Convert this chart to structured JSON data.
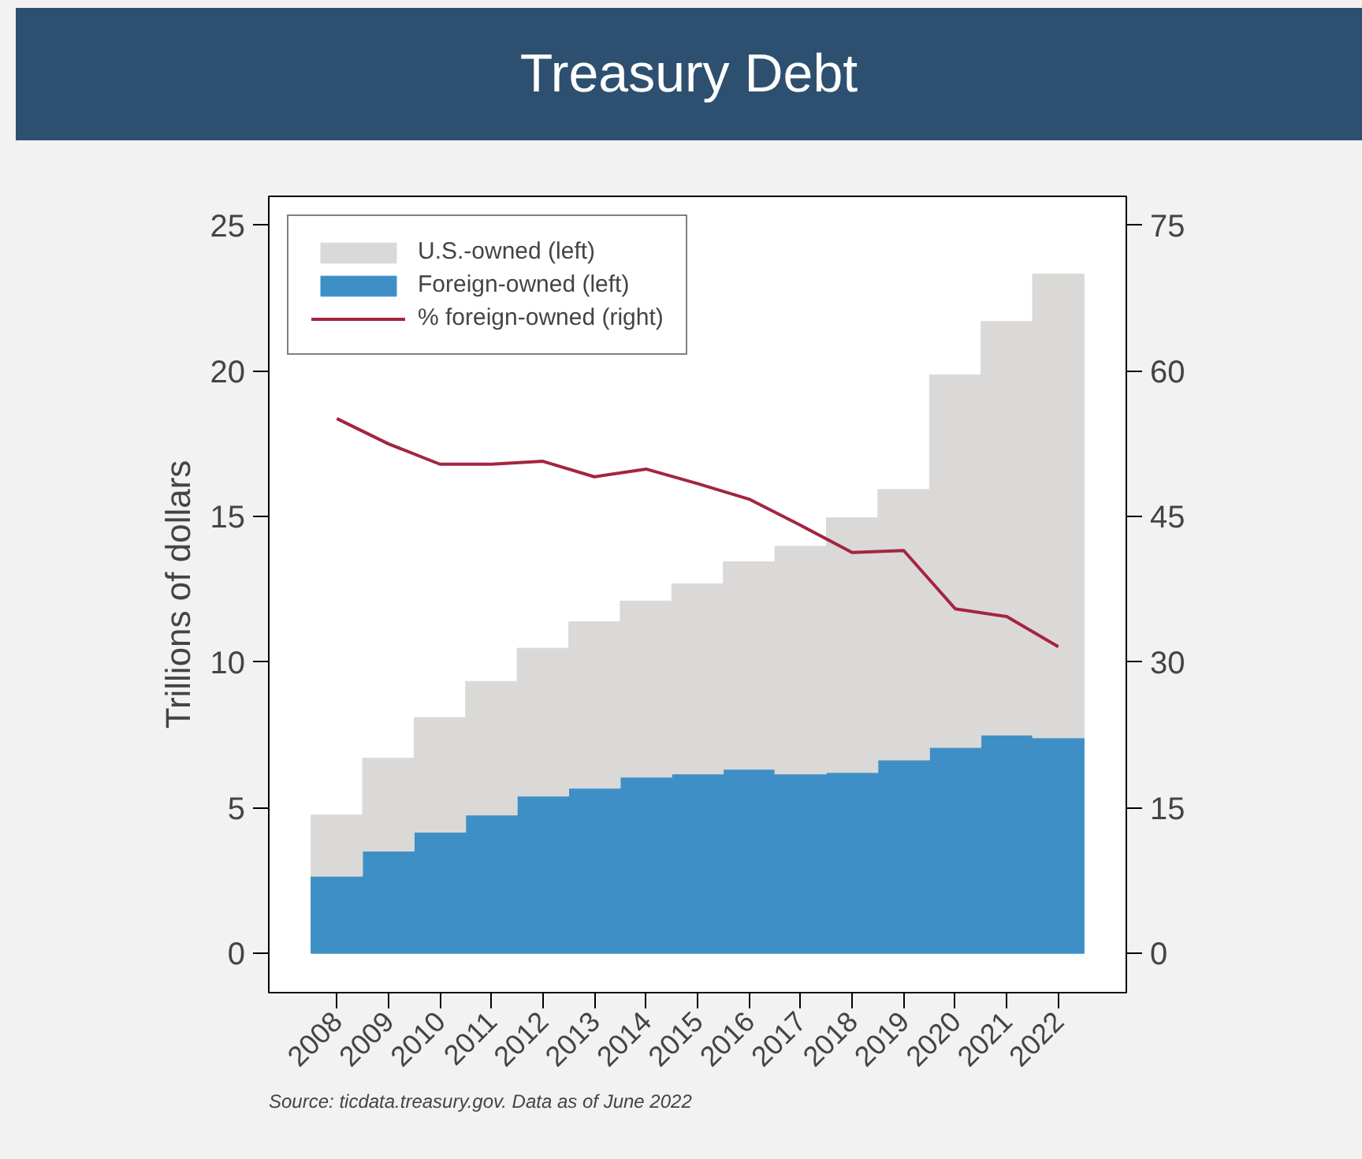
{
  "chart_data": {
    "type": "bar",
    "title": "Treasury Debt",
    "ylabel": "Trillions of dollars",
    "categories": [
      "2008",
      "2009",
      "2010",
      "2011",
      "2012",
      "2013",
      "2014",
      "2015",
      "2016",
      "2017",
      "2018",
      "2019",
      "2020",
      "2021",
      "2022"
    ],
    "stacked": true,
    "series": [
      {
        "name": "Foreign-owned (left)",
        "color": "#3f8fc7",
        "values": [
          2.65,
          3.51,
          4.16,
          4.75,
          5.4,
          5.67,
          6.05,
          6.16,
          6.32,
          6.16,
          6.21,
          6.64,
          7.07,
          7.5,
          7.4
        ]
      },
      {
        "name": "U.S.-owned (left)",
        "color": "#dbd9d8",
        "values": [
          2.1,
          3.19,
          3.94,
          4.59,
          5.08,
          5.72,
          6.05,
          6.53,
          7.13,
          7.82,
          8.75,
          9.29,
          12.8,
          14.2,
          15.93
        ]
      },
      {
        "name": "% foreign-owned (right)",
        "type": "line",
        "axis": "y2",
        "color": "#a3253f",
        "values": [
          55.1,
          52.5,
          50.4,
          50.4,
          50.7,
          49.1,
          49.9,
          48.4,
          46.8,
          44.1,
          41.3,
          41.5,
          35.5,
          34.7,
          31.6
        ]
      }
    ],
    "ylim": [
      -1.35,
      26
    ],
    "yticks": [
      0,
      5,
      10,
      15,
      20,
      25
    ],
    "y2lim": [
      -4.05,
      78
    ],
    "y2ticks": [
      0,
      15,
      30,
      45,
      60,
      75
    ],
    "grid": false,
    "legend": "top left",
    "annotations": [
      "Source: ticdata.treasury.gov. Data as of June 2022"
    ]
  }
}
